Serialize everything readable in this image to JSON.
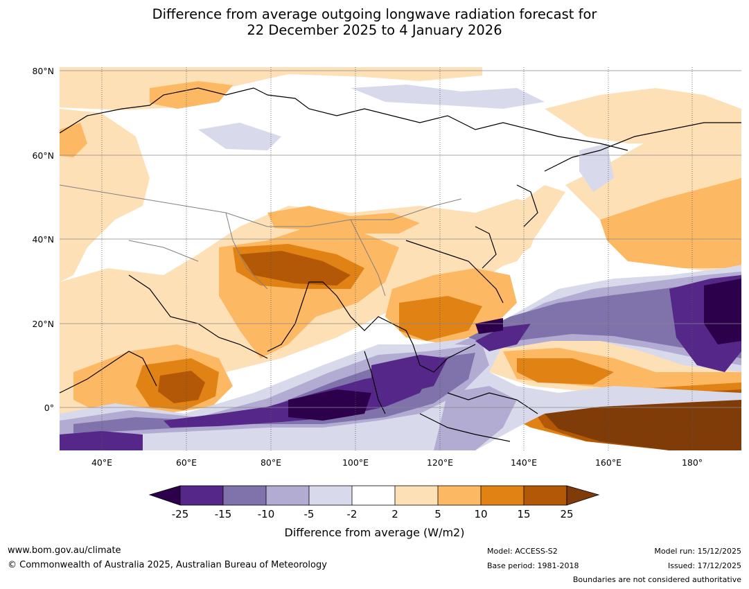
{
  "title": {
    "line1": "Difference from average outgoing longwave radiation forecast for",
    "line2": "22 December 2025 to 4 January 2026"
  },
  "map": {
    "lat_ticks": [
      "80°N",
      "60°N",
      "40°N",
      "20°N",
      "0°"
    ],
    "lon_ticks": [
      "40°E",
      "60°E",
      "80°E",
      "100°E",
      "120°E",
      "140°E",
      "160°E",
      "180°"
    ],
    "colors": {
      "neg25": "#2d004b",
      "neg15_25": "#542788",
      "neg10_15": "#8073ac",
      "neg5_10": "#b2abd2",
      "neg2_5": "#d8daeb",
      "neutral": "#ffffff",
      "pos2_5": "#fee0b6",
      "pos5_10": "#fdb863",
      "pos10_15": "#e08214",
      "pos15_25": "#b35806",
      "pos25": "#7f3b08",
      "coast": "#000000",
      "border": "#808080"
    }
  },
  "colorbar": {
    "ticks": [
      "-25",
      "-15",
      "-10",
      "-5",
      "-2",
      "2",
      "5",
      "10",
      "15",
      "25"
    ],
    "label": "Difference from average (W/m2)"
  },
  "footer": {
    "website": "www.bom.gov.au/climate",
    "copyright": "© Commonwealth of Australia 2025, Australian Bureau of Meteorology",
    "model": "Model: ACCESS-S2",
    "base_period": "Base period: 1981-2018",
    "model_run": "Model run: 15/12/2025",
    "issued": "Issued: 17/12/2025",
    "disclaimer": "Boundaries are not considered authoritative"
  }
}
